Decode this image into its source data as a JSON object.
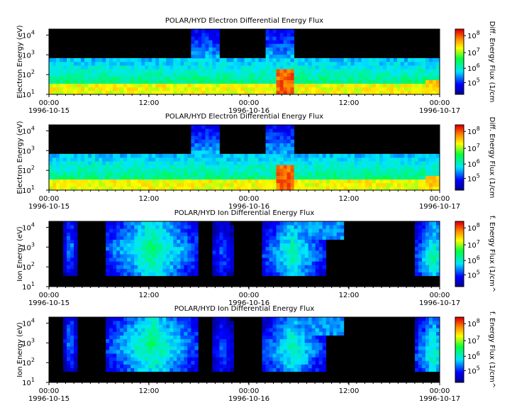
{
  "chart_data": [
    {
      "type": "heatmap",
      "title": "POLAR/HYD  Electron Differential Energy Flux",
      "ylabel": "Electron Energy (eV)",
      "y_scale": "log",
      "ylim": [
        10,
        20000
      ],
      "x_ticks": [
        "00:00",
        "12:00",
        "00:00",
        "12:00",
        "00:00"
      ],
      "x_dates": [
        "1996-10-15",
        "1996-10-16",
        "1996-10-17"
      ],
      "colorbar": {
        "label": "Diff. Energy Flux (1/cm",
        "scale": "log",
        "range": [
          10000,
          100000000
        ],
        "ticks": [
          "10^5",
          "10^6",
          "10^7",
          "10^8"
        ]
      },
      "species": "electron"
    },
    {
      "type": "heatmap",
      "title": "POLAR/HYD  Electron Differential Energy Flux",
      "ylabel": "Electron Energy (eV)",
      "y_scale": "log",
      "ylim": [
        10,
        20000
      ],
      "x_ticks": [
        "00:00",
        "12:00",
        "00:00",
        "12:00",
        "00:00"
      ],
      "x_dates": [
        "1996-10-15",
        "1996-10-16",
        "1996-10-17"
      ],
      "colorbar": {
        "label": "Diff. Energy Flux (1/cm",
        "scale": "log",
        "range": [
          10000,
          100000000
        ],
        "ticks": [
          "10^5",
          "10^6",
          "10^7",
          "10^8"
        ]
      },
      "species": "electron"
    },
    {
      "type": "heatmap",
      "title": "POLAR/HYD  Ion Differential Energy Flux",
      "ylabel": "Ion Energy (eV)",
      "y_scale": "log",
      "ylim": [
        10,
        20000
      ],
      "x_ticks": [
        "00:00",
        "12:00",
        "00:00",
        "12:00",
        "00:00"
      ],
      "x_dates": [
        "1996-10-15",
        "1996-10-16",
        "1996-10-17"
      ],
      "colorbar": {
        "label": "f. Energy Flux (1/cm^",
        "scale": "log",
        "range": [
          10000,
          100000000
        ],
        "ticks": [
          "10^5",
          "10^6",
          "10^7",
          "10^8"
        ]
      },
      "species": "ion"
    },
    {
      "type": "heatmap",
      "title": "POLAR/HYD  Ion Differential Energy Flux",
      "ylabel": "Ion Energy (eV)",
      "y_scale": "log",
      "ylim": [
        10,
        20000
      ],
      "x_ticks": [
        "00:00",
        "12:00",
        "00:00",
        "12:00",
        "00:00"
      ],
      "x_dates": [
        "1996-10-15",
        "1996-10-16",
        "1996-10-17"
      ],
      "colorbar": {
        "label": "f. Energy Flux (1/cm^",
        "scale": "log",
        "range": [
          10000,
          100000000
        ],
        "ticks": [
          "10^5",
          "10^6",
          "10^7",
          "10^8"
        ]
      },
      "species": "ion"
    }
  ]
}
